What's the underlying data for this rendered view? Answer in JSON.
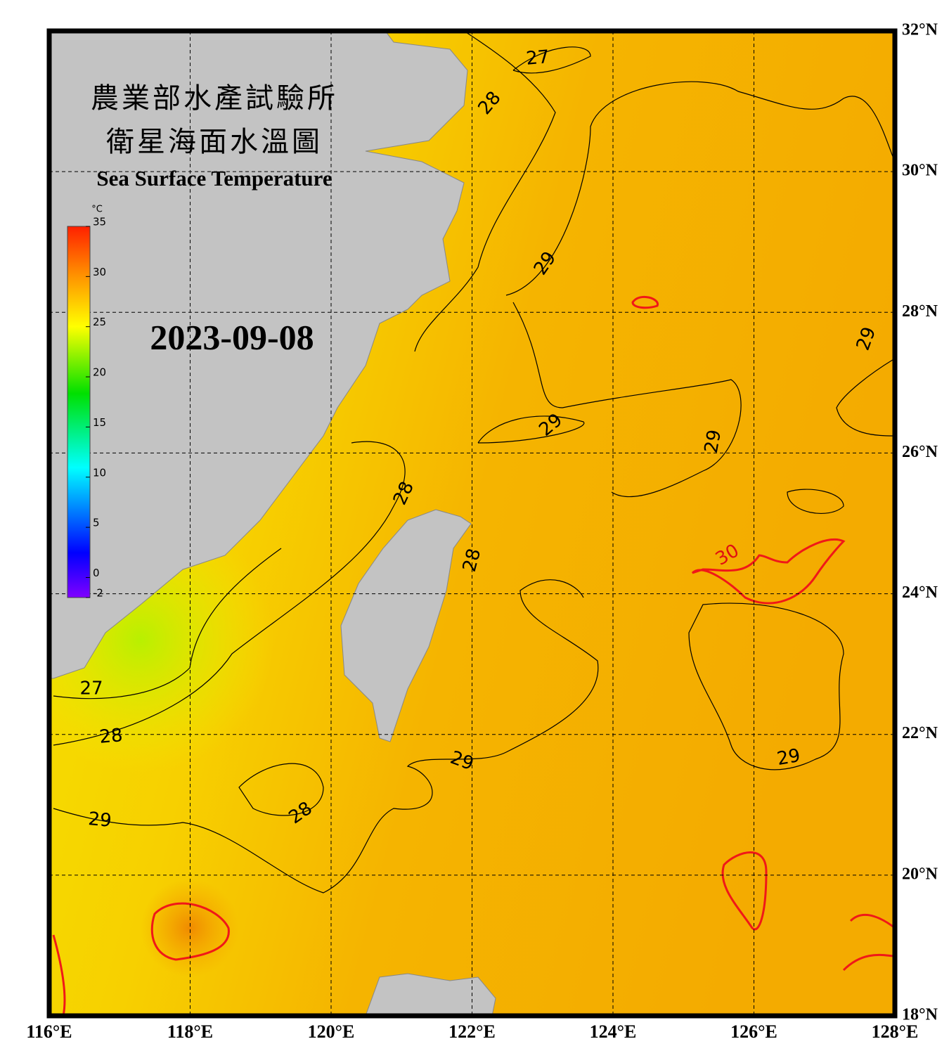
{
  "title_zh": "農業部水產試驗所",
  "subtitle_zh": "衛星海面水溫圖",
  "title_en": "Sea Surface Temperature",
  "date": "2023-09-08",
  "colorbar": {
    "unit": "°C",
    "range": [
      -2,
      35
    ],
    "ticks": [
      -2,
      0,
      5,
      10,
      15,
      20,
      25,
      30,
      35
    ]
  },
  "lon_ticks": [
    {
      "value": 116,
      "label": "116°E"
    },
    {
      "value": 118,
      "label": "118°E"
    },
    {
      "value": 120,
      "label": "120°E"
    },
    {
      "value": 122,
      "label": "122°E"
    },
    {
      "value": 124,
      "label": "124°E"
    },
    {
      "value": 126,
      "label": "126°E"
    },
    {
      "value": 128,
      "label": "128°E"
    }
  ],
  "lat_ticks": [
    {
      "value": 18,
      "label": "18°N"
    },
    {
      "value": 20,
      "label": "20°N"
    },
    {
      "value": 22,
      "label": "22°N"
    },
    {
      "value": 24,
      "label": "24°N"
    },
    {
      "value": 26,
      "label": "26°N"
    },
    {
      "value": 28,
      "label": "28°N"
    },
    {
      "value": 30,
      "label": "30°N"
    },
    {
      "value": 32,
      "label": "32°N"
    }
  ],
  "contour_labels": [
    27,
    28,
    29,
    29,
    29,
    29,
    28,
    28,
    30,
    27,
    28,
    29,
    29,
    28,
    29
  ]
}
